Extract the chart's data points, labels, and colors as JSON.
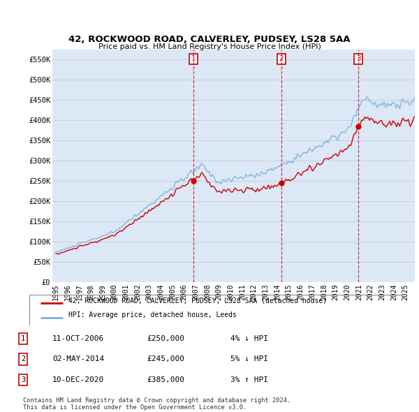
{
  "title_line1": "42, ROCKWOOD ROAD, CALVERLEY, PUDSEY, LS28 5AA",
  "title_line2": "Price paid vs. HM Land Registry's House Price Index (HPI)",
  "ylim": [
    0,
    575000
  ],
  "yticks": [
    0,
    50000,
    100000,
    150000,
    200000,
    250000,
    300000,
    350000,
    400000,
    450000,
    500000,
    550000
  ],
  "ytick_labels": [
    "£0",
    "£50K",
    "£100K",
    "£150K",
    "£200K",
    "£250K",
    "£300K",
    "£350K",
    "£400K",
    "£450K",
    "£500K",
    "£550K"
  ],
  "xlim_start": 1994.7,
  "xlim_end": 2025.8,
  "hpi_color": "#7ab0e0",
  "price_color": "#cc0000",
  "sale_marker_color": "#cc0000",
  "vline_color": "#cc0000",
  "grid_color": "#c8d0dc",
  "background_color": "#dce8f5",
  "sales": [
    {
      "year": 2006.79,
      "price": 250000,
      "label": "1"
    },
    {
      "year": 2014.33,
      "price": 245000,
      "label": "2"
    },
    {
      "year": 2020.95,
      "price": 385000,
      "label": "3"
    }
  ],
  "legend_entry1": "42, ROCKWOOD ROAD, CALVERLEY, PUDSEY, LS28 5AA (detached house)",
  "legend_entry2": "HPI: Average price, detached house, Leeds",
  "table_entries": [
    {
      "num": "1",
      "date": "11-OCT-2006",
      "price": "£250,000",
      "change": "4% ↓ HPI"
    },
    {
      "num": "2",
      "date": "02-MAY-2014",
      "price": "£245,000",
      "change": "5% ↓ HPI"
    },
    {
      "num": "3",
      "date": "10-DEC-2020",
      "price": "£385,000",
      "change": "3% ↑ HPI"
    }
  ],
  "footnote1": "Contains HM Land Registry data © Crown copyright and database right 2024.",
  "footnote2": "This data is licensed under the Open Government Licence v3.0."
}
